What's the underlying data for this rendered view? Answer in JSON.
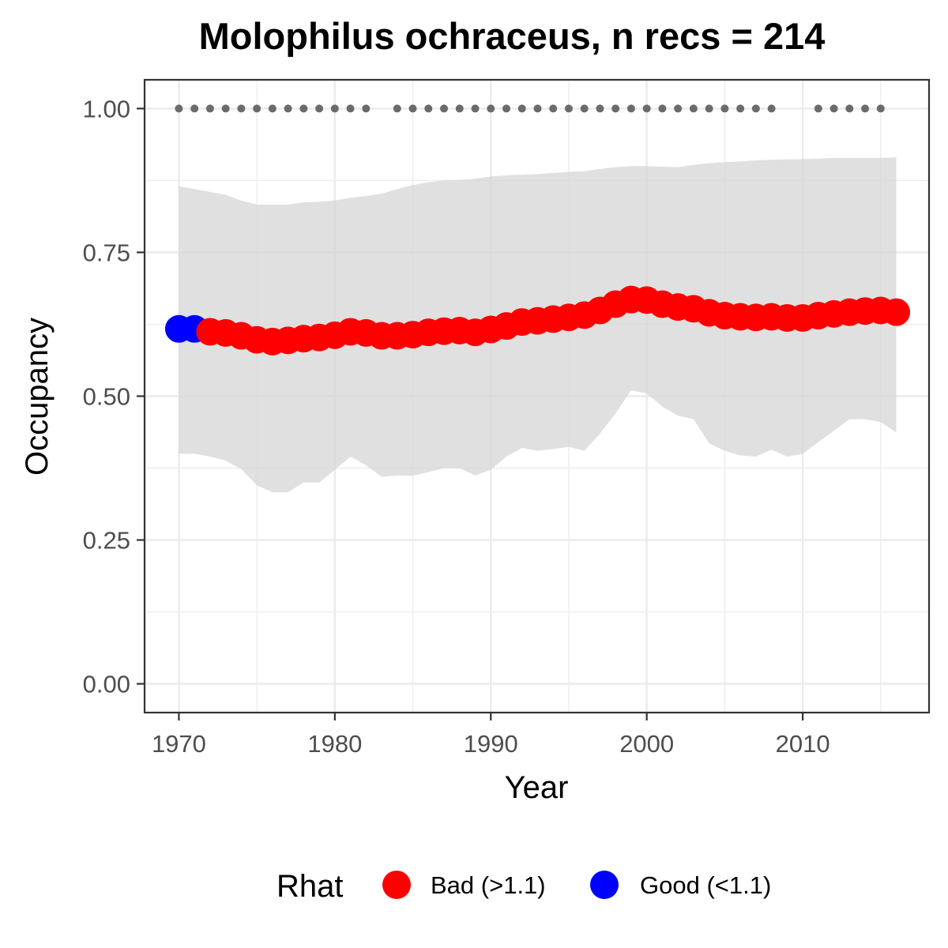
{
  "chart_data": {
    "type": "line",
    "title": "Molophilus ochraceus, n recs = 214",
    "xlabel": "Year",
    "ylabel": "Occupancy",
    "xlim": [
      1967.8,
      2018.1
    ],
    "ylim": [
      -0.05,
      1.05
    ],
    "x_ticks": [
      1970,
      1980,
      1990,
      2000,
      2010
    ],
    "y_ticks": [
      0.0,
      0.25,
      0.5,
      0.75,
      1.0
    ],
    "y_tick_labels": [
      "0.00",
      "0.25",
      "0.50",
      "0.75",
      "1.00"
    ],
    "grid": true,
    "legend": {
      "title": "Rhat",
      "position": "bottom",
      "entries": [
        {
          "label": "Bad (>1.1)",
          "color": "#ff0000"
        },
        {
          "label": "Good (<1.1)",
          "color": "#0000ff"
        }
      ]
    },
    "colors": {
      "bad": "#ff0000",
      "good": "#0000ff",
      "ribbon": "#d6d6d6",
      "record_dots": "#6b6b6b",
      "grid": "#ebebeb",
      "panel_border": "#333333"
    },
    "x": [
      1970,
      1971,
      1972,
      1973,
      1974,
      1975,
      1976,
      1977,
      1978,
      1979,
      1980,
      1981,
      1982,
      1983,
      1984,
      1985,
      1986,
      1987,
      1988,
      1989,
      1990,
      1991,
      1992,
      1993,
      1994,
      1995,
      1996,
      1997,
      1998,
      1999,
      2000,
      2001,
      2002,
      2003,
      2004,
      2005,
      2006,
      2007,
      2008,
      2009,
      2010,
      2011,
      2012,
      2013,
      2014,
      2015,
      2016
    ],
    "series": [
      {
        "name": "Occupancy",
        "values": [
          0.617,
          0.617,
          0.612,
          0.61,
          0.605,
          0.598,
          0.595,
          0.597,
          0.6,
          0.602,
          0.606,
          0.612,
          0.61,
          0.605,
          0.605,
          0.607,
          0.611,
          0.613,
          0.614,
          0.611,
          0.616,
          0.622,
          0.629,
          0.631,
          0.634,
          0.637,
          0.641,
          0.649,
          0.66,
          0.668,
          0.667,
          0.66,
          0.655,
          0.652,
          0.645,
          0.64,
          0.638,
          0.637,
          0.638,
          0.636,
          0.636,
          0.64,
          0.643,
          0.646,
          0.648,
          0.649,
          0.646
        ],
        "rhat": [
          "good",
          "good",
          "bad",
          "bad",
          "bad",
          "bad",
          "bad",
          "bad",
          "bad",
          "bad",
          "bad",
          "bad",
          "bad",
          "bad",
          "bad",
          "bad",
          "bad",
          "bad",
          "bad",
          "bad",
          "bad",
          "bad",
          "bad",
          "bad",
          "bad",
          "bad",
          "bad",
          "bad",
          "bad",
          "bad",
          "bad",
          "bad",
          "bad",
          "bad",
          "bad",
          "bad",
          "bad",
          "bad",
          "bad",
          "bad",
          "bad",
          "bad",
          "bad",
          "bad",
          "bad",
          "bad",
          "bad"
        ]
      }
    ],
    "ribbon_lower": [
      0.4,
      0.4,
      0.395,
      0.388,
      0.373,
      0.345,
      0.333,
      0.333,
      0.35,
      0.35,
      0.372,
      0.395,
      0.38,
      0.36,
      0.362,
      0.362,
      0.368,
      0.375,
      0.375,
      0.362,
      0.372,
      0.395,
      0.41,
      0.405,
      0.408,
      0.412,
      0.405,
      0.435,
      0.47,
      0.51,
      0.505,
      0.482,
      0.466,
      0.46,
      0.418,
      0.405,
      0.397,
      0.395,
      0.407,
      0.395,
      0.4,
      0.42,
      0.44,
      0.46,
      0.46,
      0.455,
      0.437
    ],
    "ribbon_upper": [
      0.865,
      0.86,
      0.855,
      0.85,
      0.84,
      0.833,
      0.833,
      0.833,
      0.837,
      0.838,
      0.84,
      0.845,
      0.848,
      0.852,
      0.86,
      0.867,
      0.872,
      0.875,
      0.876,
      0.878,
      0.882,
      0.884,
      0.885,
      0.886,
      0.888,
      0.89,
      0.891,
      0.895,
      0.898,
      0.9,
      0.9,
      0.899,
      0.898,
      0.902,
      0.905,
      0.907,
      0.908,
      0.91,
      0.911,
      0.912,
      0.912,
      0.913,
      0.914,
      0.914,
      0.914,
      0.914,
      0.915
    ],
    "record_years": [
      1970,
      1971,
      1972,
      1973,
      1974,
      1975,
      1976,
      1977,
      1978,
      1979,
      1980,
      1981,
      1982,
      1984,
      1985,
      1986,
      1987,
      1988,
      1989,
      1990,
      1991,
      1992,
      1993,
      1994,
      1995,
      1996,
      1997,
      1998,
      1999,
      2000,
      2001,
      2002,
      2003,
      2004,
      2005,
      2006,
      2007,
      2008,
      2011,
      2012,
      2013,
      2014,
      2015
    ],
    "record_value": 1.0
  }
}
